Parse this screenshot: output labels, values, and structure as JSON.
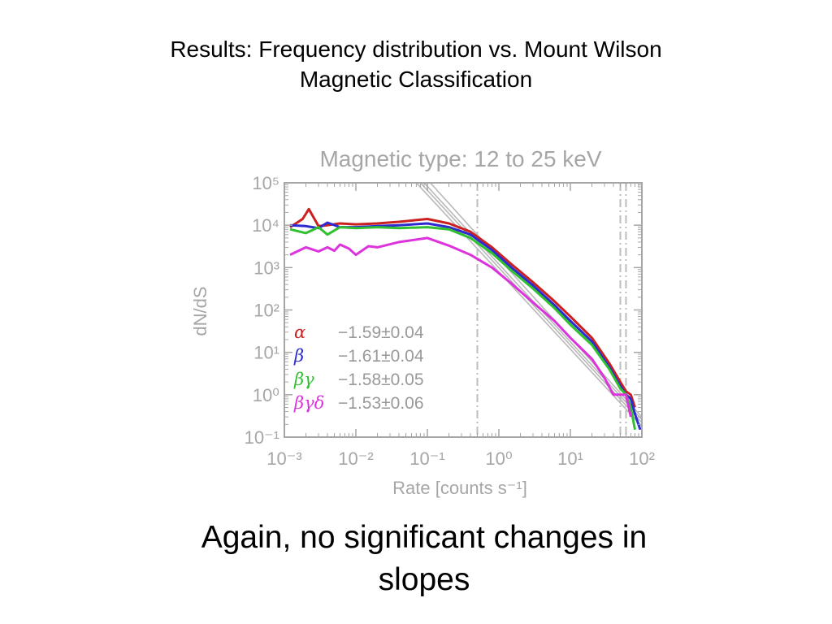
{
  "slide": {
    "title_line1": "Results: Frequency distribution vs. Mount Wilson",
    "title_line2": "Magnetic Classification",
    "caption_line1": "Again, no significant changes in",
    "caption_line2": "slopes"
  },
  "chart_data": {
    "type": "line",
    "title": "Magnetic type: 12 to 25 keV",
    "xlabel": "Rate [counts s⁻¹]",
    "ylabel": "dN/dS",
    "xscale": "log",
    "yscale": "log",
    "xlim": [
      0.001,
      100
    ],
    "ylim": [
      0.1,
      100000
    ],
    "grid": false,
    "x_ticks": [
      {
        "value": 0.001,
        "label": "10⁻³"
      },
      {
        "value": 0.01,
        "label": "10⁻²"
      },
      {
        "value": 0.1,
        "label": "10⁻¹"
      },
      {
        "value": 1,
        "label": "10⁰"
      },
      {
        "value": 10,
        "label": "10¹"
      },
      {
        "value": 100,
        "label": "10²"
      }
    ],
    "y_ticks": [
      {
        "value": 100000,
        "label": "10⁵"
      },
      {
        "value": 10000,
        "label": "10⁴"
      },
      {
        "value": 1000,
        "label": "10³"
      },
      {
        "value": 100,
        "label": "10²"
      },
      {
        "value": 10,
        "label": "10¹"
      },
      {
        "value": 1,
        "label": "10⁰"
      },
      {
        "value": 0.1,
        "label": "10⁻¹"
      }
    ],
    "vertical_lines": [
      0.5,
      50,
      60
    ],
    "fit_lines": [
      {
        "x": [
          0.07,
          100
        ],
        "y": [
          100000,
          0.18
        ]
      },
      {
        "x": [
          0.08,
          100
        ],
        "y": [
          100000,
          0.22
        ]
      },
      {
        "x": [
          0.09,
          100
        ],
        "y": [
          100000,
          0.26
        ]
      },
      {
        "x": [
          0.11,
          100
        ],
        "y": [
          100000,
          0.3
        ]
      }
    ],
    "series": [
      {
        "name": "α",
        "fit": "−1.59±0.04",
        "color": "#cc2020",
        "x": [
          0.0012,
          0.0018,
          0.0022,
          0.003,
          0.004,
          0.006,
          0.01,
          0.02,
          0.04,
          0.1,
          0.2,
          0.4,
          0.8,
          1.5,
          3,
          6,
          10,
          20,
          35,
          50,
          60,
          70,
          80
        ],
        "y": [
          9000,
          14000,
          24000,
          9500,
          10000,
          11000,
          10500,
          11000,
          12000,
          14000,
          11000,
          7000,
          3000,
          1200,
          450,
          160,
          70,
          22,
          5.5,
          2,
          1.2,
          1,
          0.5
        ]
      },
      {
        "name": "β",
        "fit": "−1.61±0.04",
        "color": "#2b2bd0",
        "x": [
          0.0012,
          0.002,
          0.003,
          0.004,
          0.006,
          0.01,
          0.02,
          0.04,
          0.1,
          0.2,
          0.4,
          0.8,
          1.5,
          3,
          6,
          10,
          20,
          35,
          50,
          60,
          70,
          80,
          95
        ],
        "y": [
          10000,
          9500,
          8500,
          11500,
          9000,
          9000,
          9500,
          10000,
          11000,
          9000,
          6000,
          2600,
          1000,
          380,
          130,
          55,
          18,
          4.5,
          1.6,
          1,
          0.8,
          0.35,
          0.15
        ]
      },
      {
        "name": "βγ",
        "fit": "−1.58±0.05",
        "color": "#30c030",
        "x": [
          0.0012,
          0.002,
          0.003,
          0.004,
          0.006,
          0.01,
          0.02,
          0.04,
          0.1,
          0.2,
          0.4,
          0.8,
          1.5,
          3,
          6,
          10,
          20,
          35,
          50,
          60,
          70,
          80
        ],
        "y": [
          8000,
          6500,
          9000,
          6000,
          9000,
          8500,
          9000,
          8500,
          9000,
          8000,
          5000,
          2200,
          850,
          320,
          110,
          45,
          15,
          4,
          1.4,
          1,
          0.5,
          0.15
        ]
      },
      {
        "name": "βγδ",
        "fit": "−1.53±0.06",
        "color": "#dd33dd",
        "x": [
          0.0012,
          0.002,
          0.003,
          0.004,
          0.005,
          0.006,
          0.008,
          0.01,
          0.015,
          0.02,
          0.04,
          0.1,
          0.2,
          0.4,
          0.8,
          1.5,
          3,
          6,
          10,
          20,
          30,
          40,
          60,
          70
        ],
        "y": [
          2000,
          3000,
          2400,
          3000,
          2500,
          3500,
          2800,
          2000,
          3200,
          3000,
          4000,
          5000,
          3300,
          2000,
          1000,
          420,
          150,
          55,
          22,
          7,
          2.5,
          1,
          1,
          0.3
        ]
      }
    ]
  }
}
